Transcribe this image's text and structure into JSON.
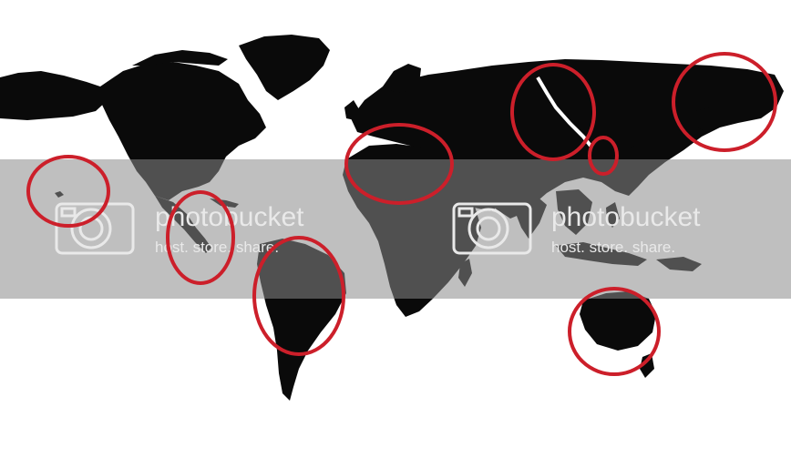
{
  "map": {
    "land_color": "#0a0a0a",
    "ocean_color": "#ffffff",
    "marker_color": "#cc1f2a",
    "marker_labels": []
  },
  "watermark": {
    "band_color": "#8a8a8a",
    "band_opacity": 0.55,
    "text_color": "#e9e9e9",
    "brand": "photobucket",
    "tagline": "host. store. share.",
    "icon": "camera-icon"
  }
}
